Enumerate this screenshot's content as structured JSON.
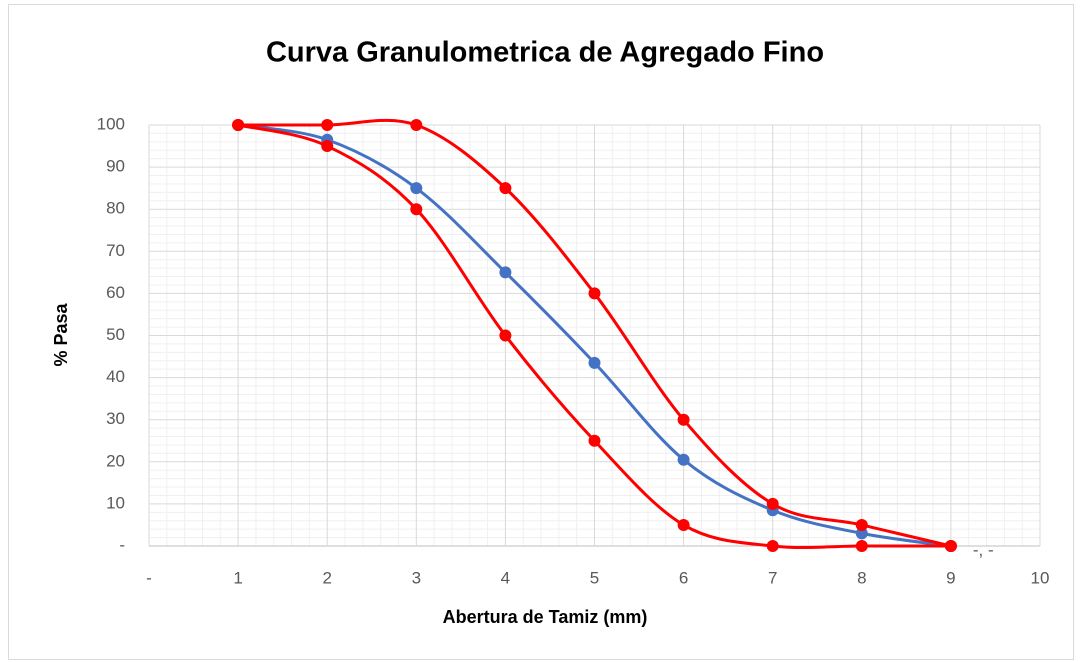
{
  "chart_data": {
    "type": "line",
    "title": "Curva Granulometrica de Agregado Fino",
    "xlabel": "Abertura de Tamiz (mm)",
    "ylabel": "% Pasa",
    "x": [
      1,
      2,
      3,
      4,
      5,
      6,
      7,
      8,
      9
    ],
    "series": [
      {
        "color": "#4472c4",
        "values": [
          100,
          96.5,
          85,
          65,
          43.5,
          20.5,
          8.5,
          3,
          0
        ]
      },
      {
        "color": "#ff0000",
        "values": [
          100,
          100,
          100,
          85,
          60,
          30,
          10,
          5,
          0
        ]
      },
      {
        "color": "#ff0000",
        "values": [
          100,
          95,
          80,
          50,
          25,
          5,
          0,
          0,
          0
        ]
      }
    ],
    "xlim": [
      0,
      10
    ],
    "xticks": [
      {
        "value": 0,
        "label": "-"
      },
      1,
      2,
      3,
      4,
      5,
      6,
      7,
      8,
      9,
      10
    ],
    "ylim": [
      0,
      100
    ],
    "yticks": [
      {
        "value": 0,
        "label": "-"
      },
      10,
      20,
      30,
      40,
      50,
      60,
      70,
      80,
      90,
      100
    ],
    "grid": true,
    "minor_grid": true,
    "smooth": true,
    "annotations": [
      {
        "text": "-, -"
      }
    ]
  }
}
